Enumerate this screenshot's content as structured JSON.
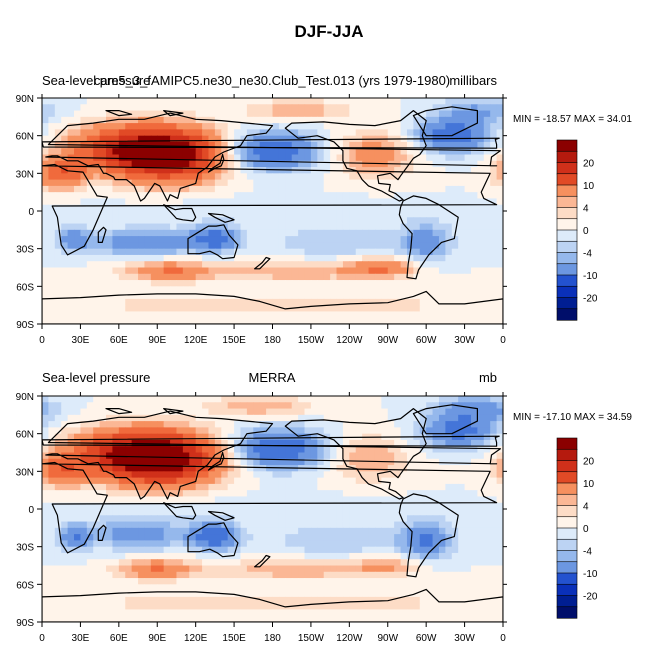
{
  "figure_title": "DJF-JJA",
  "colors": {
    "levels_high_to_low": [
      "#8B0000",
      "#B51A0E",
      "#D0301A",
      "#E14A26",
      "#F06A3C",
      "#F6905F",
      "#FBB795",
      "#FDDCC6",
      "#FFF4EA",
      "#DDEBFA",
      "#BCD3F3",
      "#95B8EC",
      "#6C97E1",
      "#4475D8",
      "#2352CF",
      "#0A30B9",
      "#001E92",
      "#000E6A"
    ],
    "land_outline": "#000000"
  },
  "chart_data": [
    {
      "type": "heatmap",
      "title_left": "Sea-level pressure",
      "title_center": "cam5_3_fAMIPC5.ne30_ne30.Club_Test.013 (yrs 1979-1980)",
      "title_right": "millibars",
      "stats": "MIN = -18.57 MAX =  34.01",
      "min": -18.57,
      "max": 34.01,
      "x_ticks": [
        "0",
        "30E",
        "60E",
        "90E",
        "120E",
        "150E",
        "180",
        "150W",
        "120W",
        "90W",
        "60W",
        "30W",
        "0"
      ],
      "y_ticks": [
        "90N",
        "60N",
        "30N",
        "0",
        "30S",
        "60S",
        "90S"
      ],
      "colorbar_labels": [
        "20",
        "10",
        "4",
        "0",
        "-4",
        "-10",
        "-20"
      ],
      "colorbar_levels": [
        25,
        20,
        15,
        10,
        6,
        4,
        2,
        0,
        -2,
        -4,
        -6,
        -10,
        -15,
        -20,
        -25
      ],
      "features": [
        {
          "name": "siberian-high",
          "lon": 100,
          "lat": 45,
          "value": 30,
          "rlon": 40,
          "rlat": 20
        },
        {
          "name": "asia-high-ext",
          "lon": 60,
          "lat": 50,
          "value": 16,
          "rlon": 40,
          "rlat": 18
        },
        {
          "name": "north-america-high",
          "lon": 260,
          "lat": 45,
          "value": 8,
          "rlon": 30,
          "rlat": 18
        },
        {
          "name": "sahara-high",
          "lon": 15,
          "lat": 30,
          "value": 14,
          "rlon": 18,
          "rlat": 12
        },
        {
          "name": "aleutian-low",
          "lon": 180,
          "lat": 48,
          "value": -14,
          "rlon": 35,
          "rlat": 15
        },
        {
          "name": "icelandic-low",
          "lon": 320,
          "lat": 60,
          "value": -14,
          "rlon": 28,
          "rlat": 13
        },
        {
          "name": "arctic-atl",
          "lon": 340,
          "lat": 80,
          "value": -6,
          "rlon": 30,
          "rlat": 10
        },
        {
          "name": "arctic-pac",
          "lon": 200,
          "lat": 80,
          "value": 6,
          "rlon": 40,
          "rlat": 8
        },
        {
          "name": "indian-ocean-low",
          "lon": 80,
          "lat": -25,
          "value": -10,
          "rlon": 40,
          "rlat": 10
        },
        {
          "name": "australia-low",
          "lon": 135,
          "lat": -22,
          "value": -12,
          "rlon": 18,
          "rlat": 10
        },
        {
          "name": "south-america-low",
          "lon": 300,
          "lat": -25,
          "value": -8,
          "rlon": 20,
          "rlat": 15
        },
        {
          "name": "southern-africa-low",
          "lon": 25,
          "lat": -22,
          "value": -8,
          "rlon": 12,
          "rlat": 10
        },
        {
          "name": "south-pacific-low",
          "lon": 230,
          "lat": -25,
          "value": -4,
          "rlon": 50,
          "rlat": 12
        },
        {
          "name": "south-indian-high",
          "lon": 100,
          "lat": -48,
          "value": 10,
          "rlon": 35,
          "rlat": 8
        },
        {
          "name": "south-pacific-high",
          "lon": 265,
          "lat": -45,
          "value": 10,
          "rlon": 25,
          "rlat": 8
        },
        {
          "name": "southern-ring-high",
          "lon": 200,
          "lat": -48,
          "value": 6,
          "rlon": 60,
          "rlat": 8
        },
        {
          "name": "antarctic-coast",
          "lon": 180,
          "lat": -75,
          "value": 4,
          "rlon": 150,
          "rlat": 8
        },
        {
          "name": "tropics-low",
          "lon": 180,
          "lat": 0,
          "value": -2,
          "rlon": 120,
          "rlat": 10
        }
      ]
    },
    {
      "type": "heatmap",
      "title_left": "Sea-level pressure",
      "title_center": "MERRA",
      "title_right": "mb",
      "stats": "MIN = -17.10 MAX =  34.59",
      "min": -17.1,
      "max": 34.59,
      "x_ticks": [
        "0",
        "30E",
        "60E",
        "90E",
        "120E",
        "150E",
        "180",
        "150W",
        "120W",
        "90W",
        "60W",
        "30W",
        "0"
      ],
      "y_ticks": [
        "90N",
        "60N",
        "30N",
        "0",
        "30S",
        "60S",
        "90S"
      ],
      "colorbar_labels": [
        "20",
        "10",
        "4",
        "0",
        "-4",
        "-10",
        "-20"
      ],
      "colorbar_levels": [
        25,
        20,
        15,
        10,
        6,
        4,
        2,
        0,
        -2,
        -4,
        -6,
        -10,
        -15,
        -20,
        -25
      ],
      "features": [
        {
          "name": "siberian-high",
          "lon": 95,
          "lat": 40,
          "value": 32,
          "rlon": 42,
          "rlat": 20
        },
        {
          "name": "asia-high-ext",
          "lon": 55,
          "lat": 45,
          "value": 14,
          "rlon": 40,
          "rlat": 18
        },
        {
          "name": "north-america-high",
          "lon": 255,
          "lat": 40,
          "value": 6,
          "rlon": 30,
          "rlat": 18
        },
        {
          "name": "sahara-high",
          "lon": 15,
          "lat": 30,
          "value": 12,
          "rlon": 18,
          "rlat": 12
        },
        {
          "name": "aleutian-low",
          "lon": 185,
          "lat": 48,
          "value": -15,
          "rlon": 35,
          "rlat": 15
        },
        {
          "name": "icelandic-low",
          "lon": 325,
          "lat": 62,
          "value": -12,
          "rlon": 28,
          "rlat": 13
        },
        {
          "name": "arctic-atl",
          "lon": 340,
          "lat": 80,
          "value": -8,
          "rlon": 30,
          "rlat": 10
        },
        {
          "name": "arctic-pac",
          "lon": 170,
          "lat": 82,
          "value": 6,
          "rlon": 40,
          "rlat": 8
        },
        {
          "name": "indian-ocean-low",
          "lon": 75,
          "lat": -20,
          "value": -8,
          "rlon": 40,
          "rlat": 12
        },
        {
          "name": "australia-low",
          "lon": 135,
          "lat": -22,
          "value": -14,
          "rlon": 18,
          "rlat": 10
        },
        {
          "name": "south-america-low",
          "lon": 300,
          "lat": -25,
          "value": -10,
          "rlon": 20,
          "rlat": 15
        },
        {
          "name": "southern-africa-low",
          "lon": 25,
          "lat": -22,
          "value": -9,
          "rlon": 12,
          "rlat": 10
        },
        {
          "name": "south-pacific-low",
          "lon": 230,
          "lat": -25,
          "value": -4,
          "rlon": 50,
          "rlat": 12
        },
        {
          "name": "south-indian-high",
          "lon": 90,
          "lat": -48,
          "value": 10,
          "rlon": 30,
          "rlat": 8
        },
        {
          "name": "south-pacific-high",
          "lon": 200,
          "lat": -48,
          "value": 6,
          "rlon": 60,
          "rlat": 8
        },
        {
          "name": "southern-ring-high",
          "lon": 270,
          "lat": -45,
          "value": 6,
          "rlon": 25,
          "rlat": 8
        },
        {
          "name": "antarctic-coast",
          "lon": 180,
          "lat": -75,
          "value": 4,
          "rlon": 150,
          "rlat": 8
        },
        {
          "name": "tropics-low",
          "lon": 180,
          "lat": 0,
          "value": -2,
          "rlon": 120,
          "rlat": 10
        }
      ]
    }
  ]
}
